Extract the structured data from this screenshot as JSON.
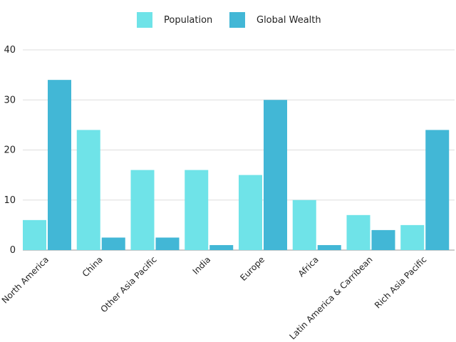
{
  "chart_data": {
    "type": "bar",
    "title": "",
    "xlabel": "",
    "ylabel": "",
    "ylim": [
      0,
      40
    ],
    "yticks": [
      0,
      10,
      20,
      30,
      40
    ],
    "grid": true,
    "legend_position": "top-center",
    "categories": [
      "North America",
      "China",
      "Other Asia Pacific",
      "India",
      "Europe",
      "Africa",
      "Latin America & Carribean",
      "Rich Asia Pacific"
    ],
    "series": [
      {
        "name": "Population",
        "color": "#6fe3e8",
        "values": [
          6,
          24,
          16,
          16,
          15,
          10,
          7,
          5
        ]
      },
      {
        "name": "Global Wealth",
        "color": "#42b7d6",
        "values": [
          34,
          2.5,
          2.5,
          1,
          30,
          1,
          4,
          24
        ]
      }
    ]
  }
}
